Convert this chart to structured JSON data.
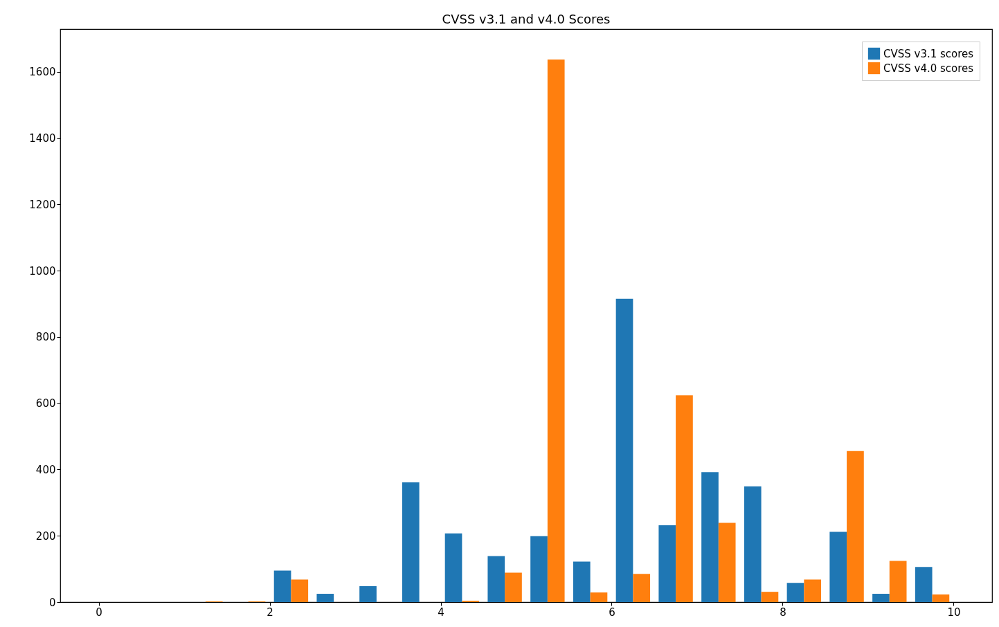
{
  "chart_data": {
    "type": "histogram",
    "title": "CVSS v3.1 and v4.0 Scores",
    "bins": [
      0,
      0.5,
      1,
      1.5,
      2,
      2.5,
      3,
      3.5,
      4,
      4.5,
      5,
      5.5,
      6,
      6.5,
      7,
      7.5,
      8,
      8.5,
      9,
      9.5,
      10
    ],
    "series": [
      {
        "name": "CVSS v3.1 scores",
        "color": "#1f77b4",
        "values": [
          0,
          0,
          0,
          0,
          95,
          25,
          48,
          361,
          207,
          139,
          199,
          122,
          915,
          232,
          392,
          349,
          58,
          212,
          25,
          106
        ]
      },
      {
        "name": "CVSS v4.0 scores",
        "color": "#ff7f0e",
        "values": [
          0,
          0,
          2,
          2,
          68,
          0,
          0,
          0,
          4,
          89,
          1637,
          29,
          85,
          624,
          239,
          31,
          68,
          456,
          124,
          23
        ]
      }
    ],
    "xlim": [
      -0.45,
      10.45
    ],
    "xticks": [
      0,
      2,
      4,
      6,
      8,
      10
    ],
    "ylim": [
      0,
      1729
    ],
    "yticks": [
      0,
      200,
      400,
      600,
      800,
      1000,
      1200,
      1400,
      1600
    ],
    "grid": false,
    "legend": "top right"
  }
}
